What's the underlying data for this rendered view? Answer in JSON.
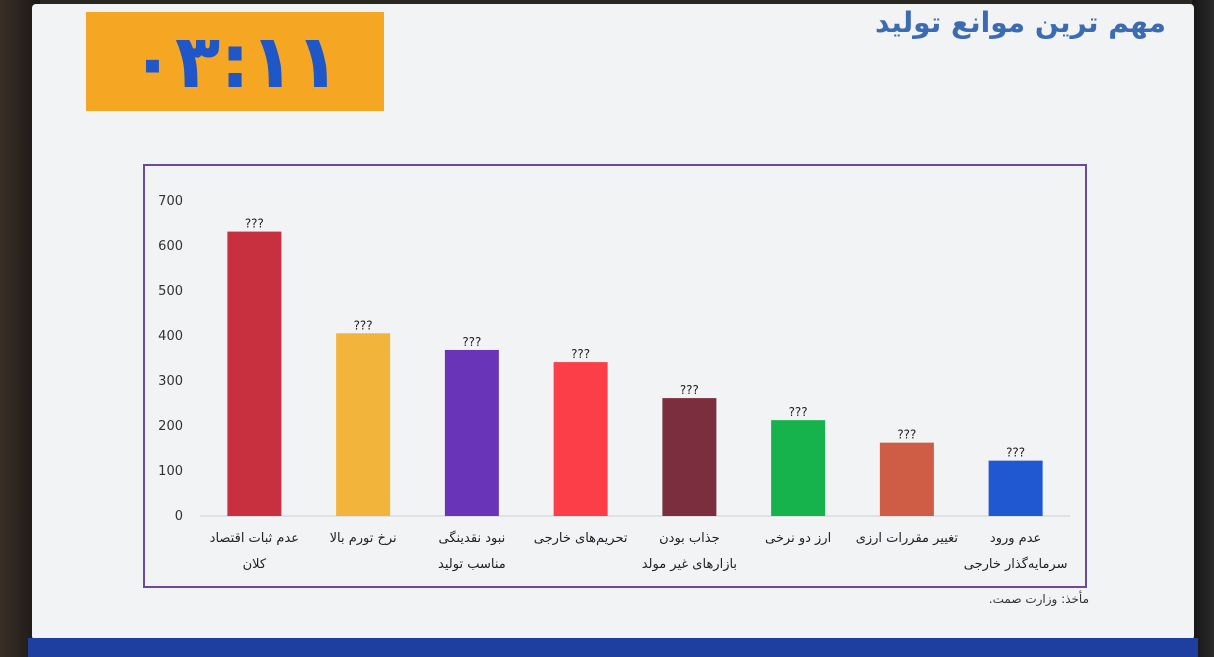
{
  "timer": "۰۳:۱۱",
  "title": "مهم ترین موانع تولید",
  "source": "مأخذ: وزارت صمت.",
  "chart_data": {
    "type": "bar",
    "title": "مهم ترین موانع تولید",
    "xlabel": "",
    "ylabel": "",
    "ylim": [
      0,
      700
    ],
    "yticks": [
      0,
      100,
      200,
      300,
      400,
      500,
      600,
      700
    ],
    "grid": false,
    "categories": [
      [
        "عدم ثبات اقتصاد",
        "کلان"
      ],
      [
        "نرخ تورم بالا"
      ],
      [
        "نبود نقدینگی",
        "مناسب تولید"
      ],
      [
        "تحریم‌های خارجی"
      ],
      [
        "جذاب بودن",
        "بازارهای غیر مولد"
      ],
      [
        "ارز دو نرخی"
      ],
      [
        "تغییر مقررات ارزی"
      ],
      [
        "عدم ورود",
        "سرمایه‌گذار خارجی"
      ]
    ],
    "values": [
      632,
      406,
      369,
      342,
      262,
      213,
      163,
      123
    ],
    "data_labels": [
      "???",
      "???",
      "???",
      "???",
      "???",
      "???",
      "???",
      "???"
    ],
    "colors": [
      "#c8303f",
      "#f2b43a",
      "#6a34b8",
      "#fb3e47",
      "#7b2f3e",
      "#16b24b",
      "#cf5c45",
      "#2058d2"
    ]
  }
}
